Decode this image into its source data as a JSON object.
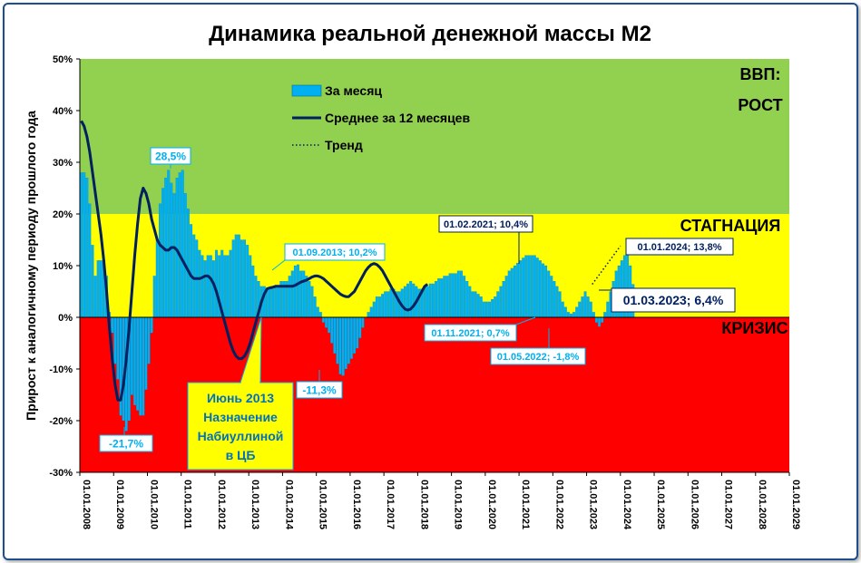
{
  "chart_data": {
    "type": "bar",
    "title": "Динамика реальной денежной массы М2",
    "ylabel": "Прирост к аналогичному периоду прошлого года",
    "xlabel": "",
    "ylim": [
      -30,
      50
    ],
    "y_ticks": [
      "-30%",
      "-20%",
      "-10%",
      "0%",
      "10%",
      "20%",
      "30%",
      "40%",
      "50%"
    ],
    "x_ticks": [
      "01.01.2008",
      "01.01.2009",
      "01.01.2010",
      "01.01.2011",
      "01.01.2012",
      "01.01.2013",
      "01.01.2014",
      "01.01.2015",
      "01.01.2016",
      "01.01.2017",
      "01.01.2018",
      "01.01.2019",
      "01.01.2020",
      "01.01.2021",
      "01.01.2022",
      "01.01.2023",
      "01.01.2024",
      "01.01.2025",
      "01.01.2026",
      "01.01.2027",
      "01.01.2028",
      "01.01.2029"
    ],
    "zones": [
      {
        "label": "ВВП:",
        "label2": "РОСТ",
        "from": 20,
        "to": 50,
        "color": "#92d050"
      },
      {
        "label": "СТАГНАЦИЯ",
        "from": 0,
        "to": 20,
        "color": "#ffff00"
      },
      {
        "label": "КРИЗИС",
        "from": -30,
        "to": 0,
        "color": "#ff0000"
      }
    ],
    "legend": [
      {
        "name": "За месяц",
        "kind": "bar",
        "color": "#00b0f0"
      },
      {
        "name": "Среднее за 12 месяцев",
        "kind": "line",
        "color": "#002060"
      },
      {
        "name": "Тренд",
        "kind": "dotted",
        "color": "#002060"
      }
    ],
    "series": [
      {
        "name": "За месяц",
        "color": "#00b0f0",
        "start": "2008-01",
        "values": [
          28,
          28,
          27,
          22,
          14,
          8,
          11,
          11,
          11,
          8,
          1,
          -3,
          -9,
          -12,
          -19,
          -20,
          -22,
          -20,
          -15,
          -17,
          -18,
          -19,
          -19,
          -14,
          -9,
          -3,
          8,
          15,
          22,
          25,
          27,
          28.5,
          26,
          24,
          27,
          28,
          28.5,
          24,
          21,
          18,
          16,
          15,
          13,
          12,
          11,
          12,
          12,
          11,
          13,
          12,
          13,
          12,
          12,
          13,
          15,
          16,
          16,
          15,
          15,
          14,
          12,
          10,
          8,
          7,
          6,
          6,
          5.5,
          5.5,
          5.5,
          6,
          6,
          7,
          7,
          7,
          8,
          9,
          10,
          10.2,
          9,
          9,
          8,
          7,
          6,
          4,
          2,
          1,
          -1,
          -2,
          -3,
          -5,
          -7,
          -9,
          -11,
          -11.3,
          -10,
          -9,
          -8,
          -7,
          -6,
          -4,
          -2,
          0,
          1,
          2,
          3,
          4,
          4,
          4.5,
          5,
          5,
          5.5,
          5.5,
          5,
          5,
          5.5,
          6,
          6.5,
          7,
          6.5,
          6,
          5.5,
          5.5,
          6,
          6,
          6.5,
          6.5,
          7,
          7.5,
          7.5,
          8,
          8,
          8.5,
          8.5,
          8.5,
          9,
          9,
          8,
          7,
          6,
          5,
          5,
          4.5,
          4,
          3,
          3,
          3,
          3.5,
          4,
          5,
          6,
          7,
          8,
          9,
          9.5,
          10,
          10.5,
          11,
          11.5,
          12,
          12,
          12,
          12,
          11.5,
          11,
          10.4,
          10,
          9,
          8,
          7,
          6,
          5,
          3,
          2,
          1,
          0.7,
          1,
          2,
          3,
          4,
          5,
          4,
          3,
          1,
          -1,
          -1.8,
          -1,
          1,
          3,
          5,
          7,
          9,
          10,
          11,
          12,
          13.8,
          10,
          6.4
        ]
      },
      {
        "name": "Среднее за 12 месяцев",
        "color": "#002060",
        "start": "2008-01",
        "values": [
          38,
          37,
          35,
          32,
          28,
          24,
          20,
          16,
          11,
          5,
          -2,
          -8,
          -13,
          -16,
          -16,
          -13,
          -8,
          -2,
          5,
          12,
          18,
          23,
          25,
          24,
          22,
          19,
          17,
          15,
          14,
          13.5,
          13,
          13,
          13.5,
          13.5,
          13,
          12,
          11,
          10,
          9,
          8,
          7.5,
          7.5,
          7.5,
          7.7,
          8,
          8,
          7.5,
          6.5,
          5,
          3,
          1,
          -1,
          -3,
          -5,
          -6.5,
          -7.5,
          -8,
          -8,
          -7.5,
          -6.5,
          -5,
          -3,
          -1,
          1,
          3,
          4.5,
          5.5,
          5.7,
          5.8,
          6,
          6,
          6,
          6,
          6,
          6,
          6,
          6.2,
          6.5,
          6.8,
          7,
          7.2,
          7.5,
          7.8,
          8,
          8,
          7.8,
          7.5,
          7,
          6.5,
          6,
          5.5,
          5,
          4.5,
          4.2,
          4,
          4,
          4.5,
          5,
          6,
          7,
          8,
          9,
          9.7,
          10.2,
          10.4,
          10.2,
          9.7,
          9,
          8,
          7,
          6,
          5,
          4,
          3,
          2.2,
          1.6,
          1.4,
          1.6,
          2.2,
          3,
          4,
          5,
          6,
          6.4
        ]
      },
      {
        "name": "Тренд",
        "color": "#002060",
        "points": [
          [
            "2023-03",
            6.4
          ],
          [
            "2024-01",
            13.8
          ]
        ]
      }
    ],
    "annotations": [
      {
        "text": "28,5%",
        "date": "2010-08",
        "value": 28.5
      },
      {
        "text": "-21,7%",
        "date": "2009-05",
        "value": -21.7
      },
      {
        "text": "01.09.2013; 10,2%",
        "date": "2013-09",
        "value": 10.2
      },
      {
        "text": "-11,3%",
        "date": "2015-03",
        "value": -11.3
      },
      {
        "text": "01.02.2021; 10,4%",
        "date": "2021-02",
        "value": 10.4
      },
      {
        "text": "01.11.2021; 0,7%",
        "date": "2021-11",
        "value": 0.7
      },
      {
        "text": "01.05.2022; -1,8%",
        "date": "2022-05",
        "value": -1.8
      },
      {
        "text": "01.01.2024; 13,8%",
        "date": "2024-01",
        "value": 13.8
      },
      {
        "text": "01.03.2023; 6,4%",
        "date": "2023-03",
        "value": 6.4
      },
      {
        "text": "Июнь 2013\nНазначение\nНабиуллиной\nв ЦБ",
        "date": "2013-06",
        "value": 0
      }
    ]
  }
}
